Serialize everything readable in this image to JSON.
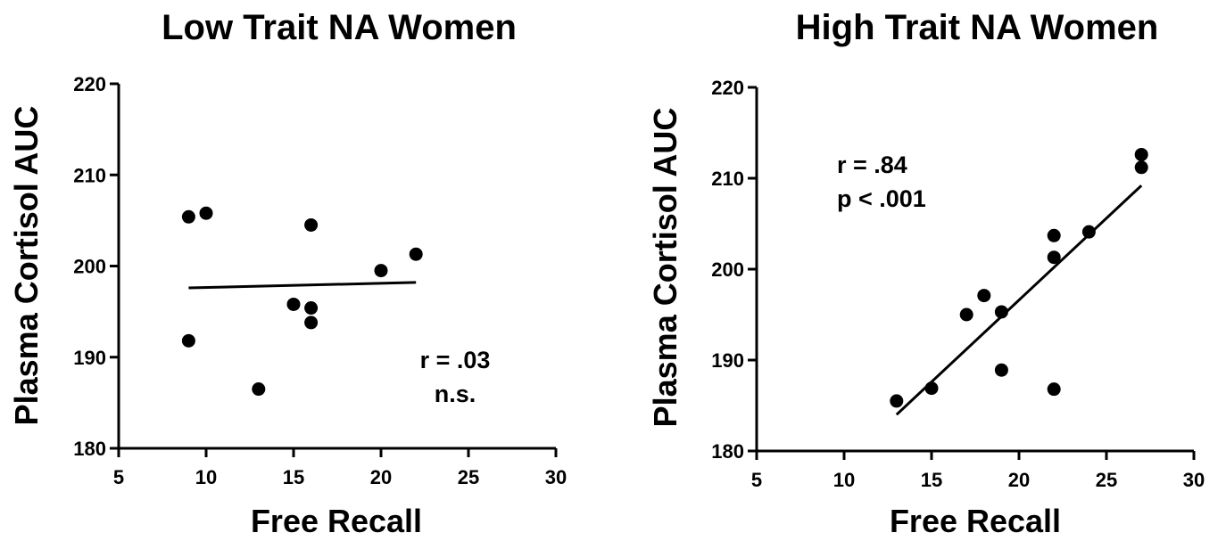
{
  "chart_data": [
    {
      "type": "scatter",
      "title": "Low Trait NA Women",
      "xlabel": "Free Recall",
      "ylabel": "Plasma Cortisol AUC",
      "xlim": [
        5,
        30
      ],
      "ylim": [
        180,
        220
      ],
      "xticks": [
        "5",
        "10",
        "15",
        "20",
        "25",
        "30"
      ],
      "yticks": [
        "180",
        "190",
        "200",
        "210",
        "220"
      ],
      "points": [
        {
          "x": 9,
          "y": 205.4
        },
        {
          "x": 10,
          "y": 205.8
        },
        {
          "x": 9,
          "y": 191.8
        },
        {
          "x": 13,
          "y": 186.5
        },
        {
          "x": 15,
          "y": 195.8
        },
        {
          "x": 16,
          "y": 195.4
        },
        {
          "x": 16,
          "y": 193.8
        },
        {
          "x": 16,
          "y": 204.5
        },
        {
          "x": 20,
          "y": 199.5
        },
        {
          "x": 22,
          "y": 201.3
        }
      ],
      "fit_line": {
        "x1": 9,
        "y1": 197.6,
        "x2": 22,
        "y2": 198.2
      },
      "annotations": [
        "r = .03",
        "n.s."
      ]
    },
    {
      "type": "scatter",
      "title": "High Trait NA Women",
      "xlabel": "Free Recall",
      "ylabel": "Plasma Cortisol AUC",
      "xlim": [
        5,
        30
      ],
      "ylim": [
        180,
        220
      ],
      "xticks": [
        "5",
        "10",
        "15",
        "20",
        "25",
        "30"
      ],
      "yticks": [
        "180",
        "190",
        "200",
        "210",
        "220"
      ],
      "points": [
        {
          "x": 13,
          "y": 185.5
        },
        {
          "x": 15,
          "y": 186.9
        },
        {
          "x": 17,
          "y": 195.0
        },
        {
          "x": 18,
          "y": 197.1
        },
        {
          "x": 19,
          "y": 195.3
        },
        {
          "x": 19,
          "y": 188.9
        },
        {
          "x": 22,
          "y": 186.8
        },
        {
          "x": 22,
          "y": 201.3
        },
        {
          "x": 22,
          "y": 203.7
        },
        {
          "x": 24,
          "y": 204.1
        },
        {
          "x": 27,
          "y": 211.2
        },
        {
          "x": 27,
          "y": 212.6
        }
      ],
      "fit_line": {
        "x1": 13,
        "y1": 184.0,
        "x2": 27,
        "y2": 209.2
      },
      "annotations": [
        "r = .84",
        "p < .001"
      ]
    }
  ]
}
